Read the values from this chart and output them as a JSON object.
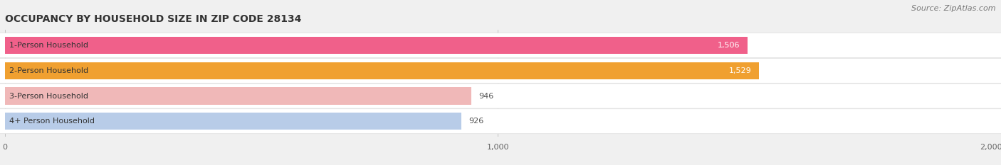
{
  "title": "OCCUPANCY BY HOUSEHOLD SIZE IN ZIP CODE 28134",
  "source": "Source: ZipAtlas.com",
  "categories": [
    "1-Person Household",
    "2-Person Household",
    "3-Person Household",
    "4+ Person Household"
  ],
  "values": [
    1506,
    1529,
    946,
    926
  ],
  "bar_colors": [
    "#f0608a",
    "#f0a030",
    "#f0b8b8",
    "#b8cce8"
  ],
  "label_colors": [
    "#333333",
    "#333333",
    "#333333",
    "#333333"
  ],
  "value_colors": [
    "white",
    "white",
    "#555555",
    "#555555"
  ],
  "xlim": [
    0,
    2000
  ],
  "xticks": [
    0,
    1000,
    2000
  ],
  "xticklabels": [
    "0",
    "1,000",
    "2,000"
  ],
  "fig_bg": "#f0f0f0",
  "row_bg": "#ffffff",
  "title_fontsize": 10,
  "source_fontsize": 8,
  "label_fontsize": 8,
  "value_fontsize": 8,
  "tick_fontsize": 8,
  "bar_height": 0.68
}
